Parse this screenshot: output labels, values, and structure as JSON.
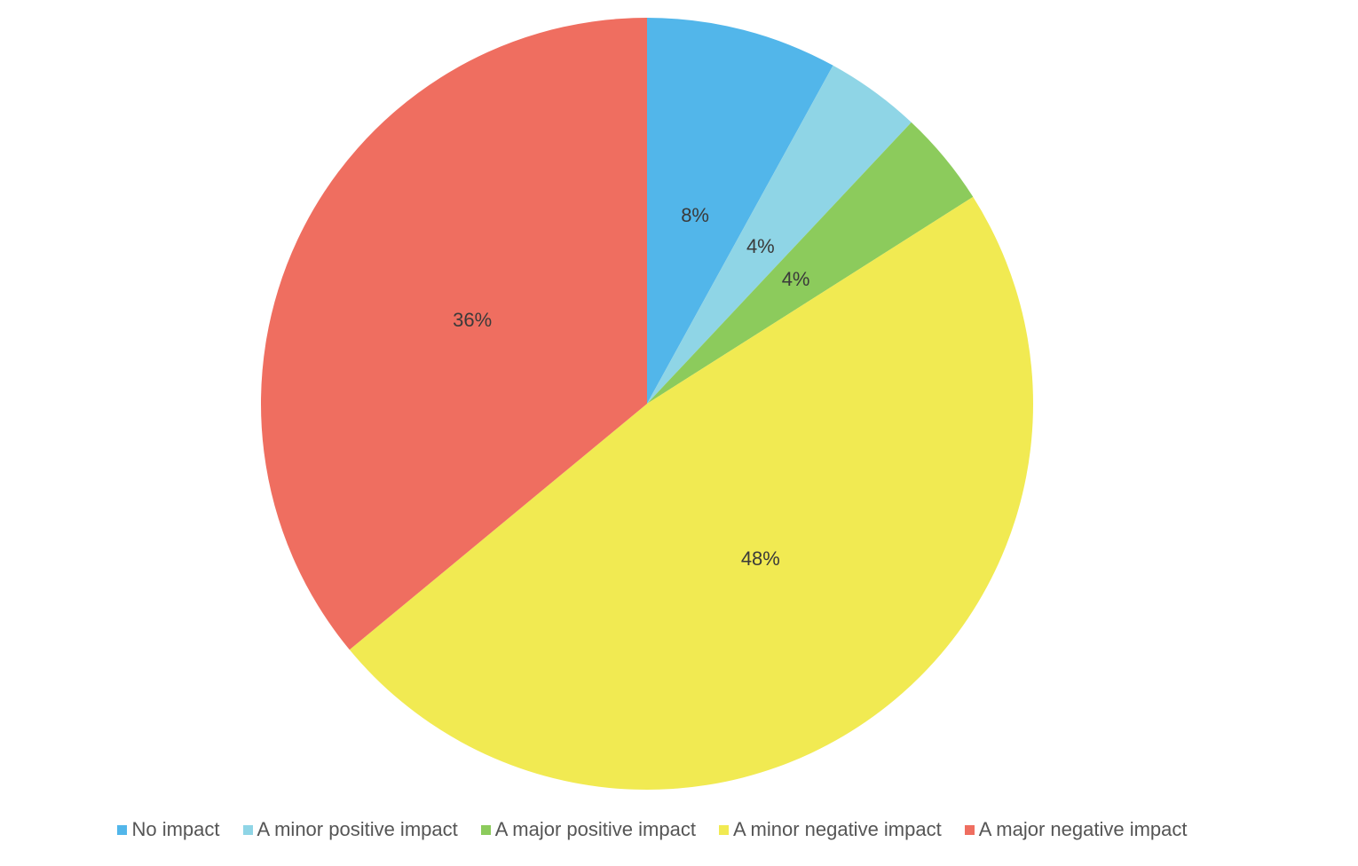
{
  "chart_data": {
    "type": "pie",
    "categories": [
      "No impact",
      "A minor positive impact",
      "A major positive impact",
      "A minor negative impact",
      "A major negative impact"
    ],
    "values": [
      8,
      4,
      4,
      48,
      36
    ],
    "value_labels": [
      "8%",
      "4%",
      "4%",
      "48%",
      "36%"
    ],
    "colors": [
      "#52b6ea",
      "#8fd5e6",
      "#8ccb5c",
      "#f1ea52",
      "#ef6e60"
    ],
    "legend": "bottom"
  }
}
